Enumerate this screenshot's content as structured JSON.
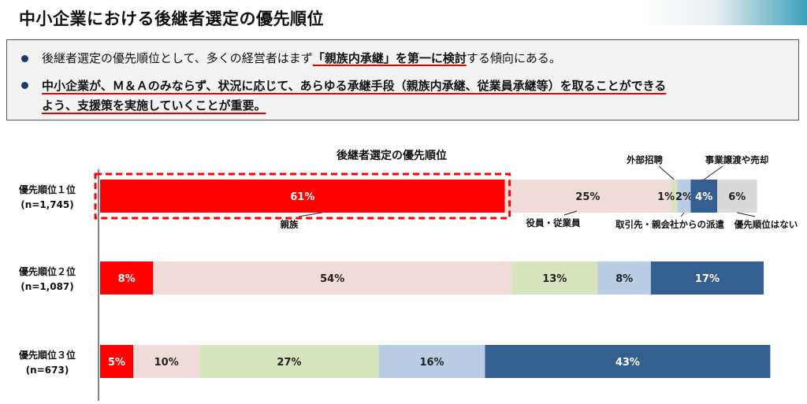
{
  "header": {
    "title": "中小企業における後継者選定の優先順位"
  },
  "summary": {
    "bullet1_pre": "後継者選定の優先順位として、多くの経営者はまず",
    "bullet1_em": "「親族内承継」を第一に検討",
    "bullet1_post": "する傾向にある。",
    "bullet2_line1": "中小企業が、Ｍ＆Ａのみならず、状況に応じて、あらゆる承継手段（親族内承継、従業員承継等）を取ることができる",
    "bullet2_line2": "よう、支援策を実施していくことが重要。"
  },
  "colors": {
    "親族": "#ff0000",
    "役員・従業員": "#f2dcdb",
    "外部招聘": "#d7e4bd",
    "取引先・親会社からの派遣": "#b9cde5",
    "事業譲渡や売却": "#365f91",
    "優先順位はない": "#d9d9d9",
    "highlight_box": "#ff0000"
  },
  "chart_data": {
    "type": "bar",
    "orientation": "horizontal",
    "stacked": true,
    "title": "後継者選定の優先順位",
    "categories": [
      {
        "label": "優先順位１位",
        "n": "(n=1,745)"
      },
      {
        "label": "優先順位２位",
        "n": "(n=1,087)"
      },
      {
        "label": "優先順位３位",
        "n": "(n=673)"
      }
    ],
    "series": [
      {
        "name": "親族",
        "values": [
          61,
          8,
          5
        ]
      },
      {
        "name": "役員・従業員",
        "values": [
          25,
          54,
          10
        ]
      },
      {
        "name": "外部招聘",
        "values": [
          1,
          13,
          27
        ]
      },
      {
        "name": "取引先・親会社からの派遣",
        "values": [
          2,
          8,
          16
        ]
      },
      {
        "name": "事業譲渡や売却",
        "values": [
          4,
          17,
          43
        ]
      },
      {
        "name": "優先順位はない",
        "values": [
          6,
          0,
          0
        ]
      }
    ],
    "unit": "%",
    "xlim": [
      0,
      100
    ],
    "highlight": {
      "category_index": 0,
      "series": "親族"
    }
  }
}
